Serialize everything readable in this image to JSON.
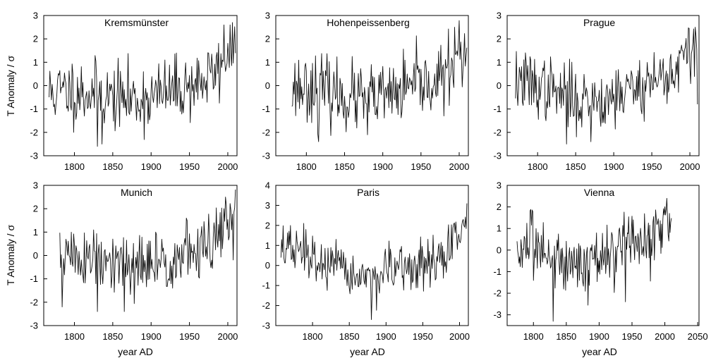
{
  "figure": {
    "ylabel": "T Anomaly / σ",
    "xlabel": "year AD"
  },
  "chart_data": [
    {
      "type": "line",
      "title": "Kremsmünster",
      "xlabel": "",
      "ylabel": "T Anomaly / σ",
      "xlim": [
        1760,
        2012
      ],
      "ylim": [
        -3,
        3
      ],
      "x_ticks": [
        1800,
        1850,
        1900,
        1950,
        2000
      ],
      "y_ticks": [
        -3,
        -2,
        -1,
        0,
        1,
        2,
        3
      ],
      "x_range": [
        1767,
        2010
      ],
      "trend": [
        [
          1767,
          -0.3
        ],
        [
          1800,
          -0.2
        ],
        [
          1850,
          -0.5
        ],
        [
          1880,
          -0.6
        ],
        [
          1900,
          -0.5
        ],
        [
          1950,
          0.0
        ],
        [
          1980,
          0.4
        ],
        [
          2000,
          1.4
        ],
        [
          2010,
          1.8
        ]
      ],
      "spread": 0.95,
      "seed": 11,
      "extremes": [
        [
          1830,
          -2.6
        ],
        [
          1836,
          -2.5
        ],
        [
          1995,
          2.6
        ],
        [
          2003,
          2.6
        ]
      ]
    },
    {
      "type": "line",
      "title": "Hohenpeissenberg",
      "xlabel": "",
      "ylabel": "",
      "xlim": [
        1760,
        2012
      ],
      "ylim": [
        -3,
        3
      ],
      "x_ticks": [
        1800,
        1850,
        1900,
        1950,
        2000
      ],
      "y_ticks": [
        -3,
        -2,
        -1,
        0,
        1,
        2,
        3
      ],
      "x_range": [
        1781,
        2010
      ],
      "trend": [
        [
          1781,
          -0.1
        ],
        [
          1800,
          0.0
        ],
        [
          1850,
          -0.5
        ],
        [
          1880,
          -0.6
        ],
        [
          1900,
          -0.5
        ],
        [
          1950,
          0.0
        ],
        [
          1980,
          0.3
        ],
        [
          2000,
          1.3
        ],
        [
          2010,
          1.4
        ]
      ],
      "spread": 0.95,
      "seed": 23,
      "extremes": [
        [
          1816,
          -2.4
        ],
        [
          1880,
          -2.1
        ],
        [
          1994,
          2.5
        ]
      ]
    },
    {
      "type": "line",
      "title": "Prague",
      "xlabel": "",
      "ylabel": "",
      "xlim": [
        1760,
        2012
      ],
      "ylim": [
        -3,
        3
      ],
      "x_ticks": [
        1800,
        1850,
        1900,
        1950,
        2000
      ],
      "y_ticks": [
        -3,
        -2,
        -1,
        0,
        1,
        2,
        3
      ],
      "x_range": [
        1771,
        2010
      ],
      "trend": [
        [
          1771,
          0.2
        ],
        [
          1800,
          0.0
        ],
        [
          1850,
          -0.6
        ],
        [
          1880,
          -0.6
        ],
        [
          1900,
          -0.4
        ],
        [
          1950,
          0.2
        ],
        [
          1980,
          0.6
        ],
        [
          2000,
          1.5
        ],
        [
          2010,
          1.8
        ]
      ],
      "spread": 0.9,
      "seed": 37,
      "extremes": [
        [
          1838,
          -2.5
        ],
        [
          1870,
          -2.4
        ],
        [
          2007,
          2.5
        ],
        [
          2010,
          -0.8
        ]
      ]
    },
    {
      "type": "line",
      "title": "Munich",
      "xlabel": "year AD",
      "ylabel": "T Anomaly / σ",
      "xlim": [
        1760,
        2012
      ],
      "ylim": [
        -3,
        3
      ],
      "x_ticks": [
        1800,
        1850,
        1900,
        1950,
        2000
      ],
      "y_ticks": [
        -3,
        -2,
        -1,
        0,
        1,
        2,
        3
      ],
      "x_range": [
        1781,
        2010
      ],
      "trend": [
        [
          1781,
          0.0
        ],
        [
          1800,
          0.0
        ],
        [
          1850,
          -0.5
        ],
        [
          1880,
          -0.6
        ],
        [
          1900,
          -0.4
        ],
        [
          1950,
          0.1
        ],
        [
          1980,
          0.4
        ],
        [
          2000,
          1.4
        ],
        [
          2010,
          1.7
        ]
      ],
      "spread": 0.95,
      "seed": 51,
      "extremes": [
        [
          1784,
          -2.2
        ],
        [
          1830,
          -2.4
        ],
        [
          1865,
          -2.4
        ],
        [
          1997,
          2.5
        ]
      ]
    },
    {
      "type": "line",
      "title": "Paris",
      "xlabel": "year AD",
      "ylabel": "",
      "xlim": [
        1750,
        2012
      ],
      "ylim": [
        -3,
        4
      ],
      "x_ticks": [
        1800,
        1850,
        1900,
        1950,
        2000
      ],
      "y_ticks": [
        -3,
        -2,
        -1,
        0,
        1,
        2,
        3,
        4
      ],
      "x_range": [
        1757,
        2010
      ],
      "trend": [
        [
          1757,
          1.0
        ],
        [
          1790,
          0.5
        ],
        [
          1830,
          -0.2
        ],
        [
          1870,
          -0.6
        ],
        [
          1900,
          -0.4
        ],
        [
          1950,
          0.0
        ],
        [
          1980,
          0.4
        ],
        [
          2000,
          1.8
        ],
        [
          2010,
          2.2
        ]
      ],
      "spread": 0.8,
      "seed": 67,
      "extremes": [
        [
          1880,
          -2.7
        ],
        [
          1788,
          2.1
        ],
        [
          2010,
          3.1
        ]
      ]
    },
    {
      "type": "line",
      "title": "Vienna",
      "xlabel": "year AD",
      "ylabel": "",
      "xlim": [
        1760,
        2052
      ],
      "ylim": [
        -3.5,
        3
      ],
      "x_ticks": [
        1800,
        1850,
        1900,
        1950,
        2000,
        2050
      ],
      "y_ticks": [
        -3,
        -2,
        -1,
        0,
        1,
        2,
        3
      ],
      "x_range": [
        1775,
        2010
      ],
      "trend": [
        [
          1775,
          0.0
        ],
        [
          1800,
          0.1
        ],
        [
          1850,
          -0.5
        ],
        [
          1880,
          -0.6
        ],
        [
          1900,
          -0.4
        ],
        [
          1950,
          0.2
        ],
        [
          1980,
          0.5
        ],
        [
          2000,
          1.5
        ],
        [
          2010,
          1.6
        ]
      ],
      "spread": 0.95,
      "seed": 83,
      "extremes": [
        [
          1830,
          -3.3
        ],
        [
          1940,
          -2.4
        ],
        [
          2003,
          2.4
        ]
      ]
    }
  ]
}
